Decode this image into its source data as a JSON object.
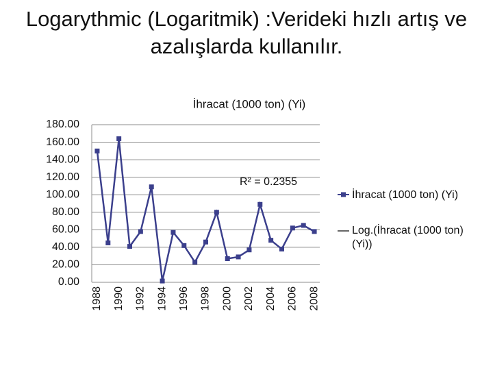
{
  "title": "Logarythmic (Logaritmik) :Verideki hızlı artış ve azalışlarda kullanılır.",
  "chart_data": {
    "type": "line",
    "title": "İhracat (1000 ton) (Yi)",
    "categories": [
      "1988",
      null,
      "1990",
      null,
      "1992",
      null,
      "1994",
      null,
      "1996",
      null,
      "1998",
      null,
      "2000",
      null,
      "2002",
      null,
      "2004",
      null,
      "2006",
      null,
      "2008"
    ],
    "series": [
      {
        "name": "İhracat (1000 ton) (Yi)",
        "color": "#3b3f8c",
        "values": [
          150,
          45,
          164,
          41,
          58,
          109,
          1.5,
          57,
          42,
          23,
          46,
          80,
          27,
          29,
          37,
          89,
          48,
          38,
          62,
          65,
          58
        ]
      }
    ],
    "trendline": {
      "name": "Log.(İhracat (1000 ton) (Yi))",
      "color": "#333333",
      "annotation": "R² = 0.2355"
    },
    "ylim": [
      0,
      180
    ],
    "yticks": [
      {
        "value": 0,
        "label": "0.00"
      },
      {
        "value": 20,
        "label": "20.00"
      },
      {
        "value": 40,
        "label": "40.00"
      },
      {
        "value": 60,
        "label": "60.00"
      },
      {
        "value": 80,
        "label": "80.00"
      },
      {
        "value": 100,
        "label": "100.00"
      },
      {
        "value": 120,
        "label": "120.00"
      },
      {
        "value": 140,
        "label": "140.00"
      },
      {
        "value": 160,
        "label": "160.00"
      },
      {
        "value": 180,
        "label": "180.00"
      }
    ],
    "grid": true
  }
}
